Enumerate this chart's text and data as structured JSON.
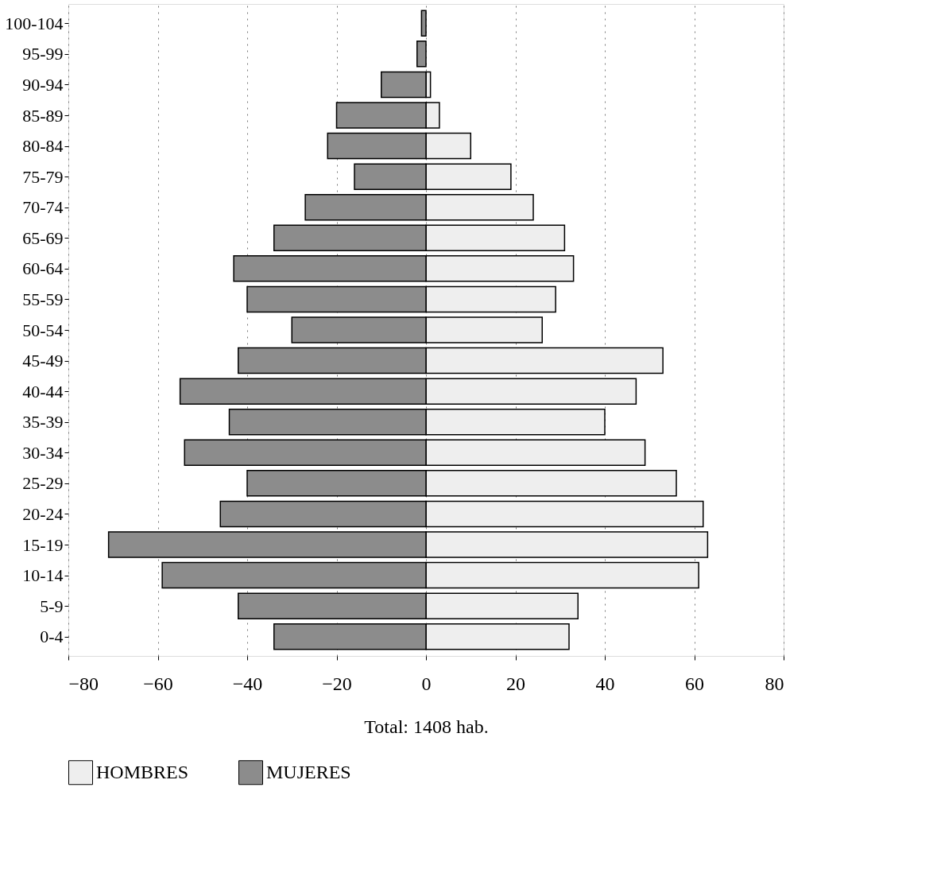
{
  "chart_data": {
    "type": "bar",
    "orientation": "horizontal",
    "xlabel": "Total: 1408 hab.",
    "categories": [
      "100-104",
      "95-99",
      "90-94",
      "85-89",
      "80-84",
      "75-79",
      "70-74",
      "65-69",
      "60-64",
      "55-59",
      "50-54",
      "45-49",
      "40-44",
      "35-39",
      "30-34",
      "25-29",
      "20-24",
      "15-19",
      "10-14",
      "5-9",
      "0-4"
    ],
    "series": [
      {
        "name": "HOMBRES",
        "color": "#eeeeee",
        "values": [
          null,
          null,
          1,
          3,
          10,
          19,
          24,
          31,
          33,
          29,
          26,
          53,
          47,
          40,
          49,
          56,
          62,
          63,
          61,
          34,
          32
        ]
      },
      {
        "name": "MUJERES",
        "color": "#8c8c8c",
        "values": [
          -1,
          -2,
          -10,
          -20,
          -22,
          -16,
          -27,
          -34,
          -43,
          -40,
          -30,
          -42,
          -55,
          -44,
          -54,
          -40,
          -46,
          -71,
          -59,
          -42,
          -34
        ]
      }
    ],
    "xlim": [
      -80,
      80
    ],
    "xticks": [
      -80,
      -60,
      -40,
      -20,
      0,
      20,
      40,
      60,
      80
    ],
    "grid": "x",
    "legend": "bottom",
    "stacked": true
  }
}
